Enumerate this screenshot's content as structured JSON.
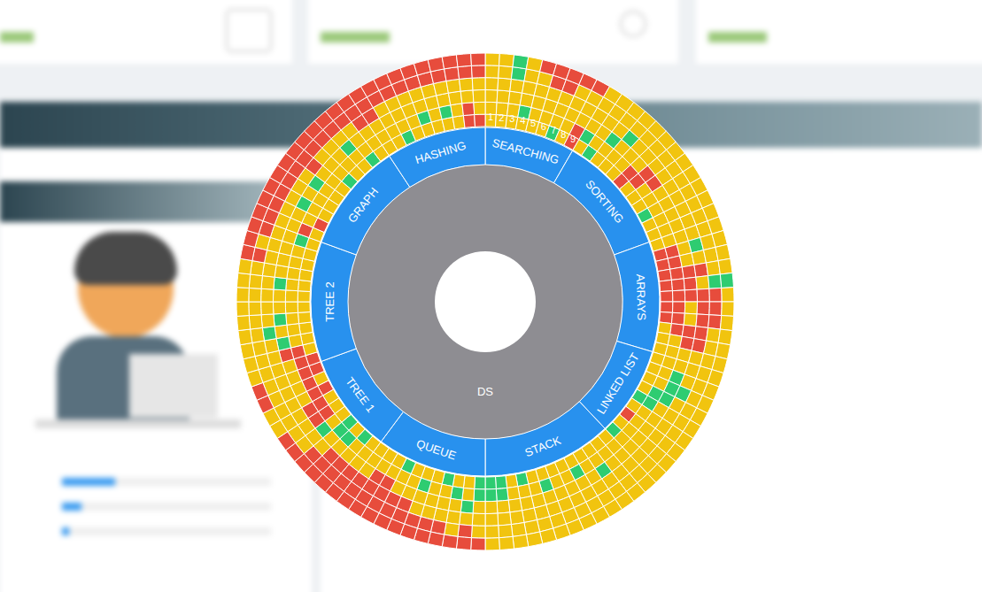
{
  "chart_data": {
    "type": "sunburst",
    "center": "DS",
    "color": "#2891ee",
    "children": [
      {
        "name": "SEARCHING",
        "labels": [
          1,
          2,
          3,
          4,
          5,
          6,
          7,
          8,
          9
        ],
        "colors": [
          [
            "#f1c40f",
            "#f1c40f",
            "#f1c40f",
            "#f1c40f",
            "#f1c40f",
            "#f1c40f"
          ],
          [
            "#f1c40f",
            "#f1c40f",
            "#f1c40f",
            "#f1c40f",
            "#f1c40f",
            "#f1c40f"
          ],
          [
            "#f1c40f",
            "#f1c40f",
            "#f1c40f",
            "#f1c40f",
            "#2ecc71",
            "#2ecc71"
          ],
          [
            "#f1c40f",
            "#2ecc71",
            "#f1c40f",
            "#f1c40f",
            "#f1c40f",
            "#f1c40f"
          ],
          [
            "#f1c40f",
            "#f1c40f",
            "#f1c40f",
            "#f1c40f",
            "#f1c40f",
            "#e74c3c"
          ],
          [
            "#f1c40f",
            "#f1c40f",
            "#f1c40f",
            "#f1c40f",
            "#e74c3c",
            "#e74c3c"
          ],
          [
            "#2ecc71",
            "#f1c40f",
            "#f1c40f",
            "#f1c40f",
            "#e74c3c",
            "#e74c3c"
          ],
          [
            "#f1c40f",
            "#f1c40f",
            "#f1c40f",
            "#f1c40f",
            "#f1c40f",
            "#e74c3c"
          ],
          [
            "#e74c3c",
            "#e74c3c",
            "#f1c40f",
            "#f1c40f",
            "#f1c40f",
            "#e74c3c"
          ]
        ]
      },
      {
        "name": "SORTING",
        "colors": [
          [
            "#f1c40f",
            "#2ecc71",
            "#f1c40f",
            "#f1c40f",
            "#f1c40f",
            "#f1c40f"
          ],
          [
            "#2ecc71",
            "#f1c40f",
            "#f1c40f",
            "#f1c40f",
            "#f1c40f",
            "#f1c40f"
          ],
          [
            "#f1c40f",
            "#f1c40f",
            "#2ecc71",
            "#f1c40f",
            "#f1c40f",
            "#f1c40f"
          ],
          [
            "#f1c40f",
            "#f1c40f",
            "#f1c40f",
            "#2ecc71",
            "#f1c40f",
            "#f1c40f"
          ],
          [
            "#f1c40f",
            "#f1c40f",
            "#f1c40f",
            "#f1c40f",
            "#f1c40f",
            "#f1c40f"
          ],
          [
            "#e74c3c",
            "#e74c3c",
            "#f1c40f",
            "#f1c40f",
            "#f1c40f",
            "#f1c40f"
          ],
          [
            "#f1c40f",
            "#e74c3c",
            "#e74c3c",
            "#f1c40f",
            "#f1c40f",
            "#f1c40f"
          ],
          [
            "#f1c40f",
            "#f1c40f",
            "#e74c3c",
            "#f1c40f",
            "#f1c40f",
            "#f1c40f"
          ],
          [
            "#f1c40f",
            "#f1c40f",
            "#f1c40f",
            "#f1c40f",
            "#f1c40f",
            "#f1c40f"
          ],
          [
            "#2ecc71",
            "#f1c40f",
            "#f1c40f",
            "#f1c40f",
            "#f1c40f",
            "#f1c40f"
          ],
          [
            "#f1c40f",
            "#f1c40f",
            "#f1c40f",
            "#f1c40f",
            "#f1c40f",
            "#f1c40f"
          ],
          [
            "#f1c40f",
            "#f1c40f",
            "#f1c40f",
            "#f1c40f",
            "#f1c40f",
            "#f1c40f"
          ]
        ]
      },
      {
        "name": "ARRAYS",
        "colors": [
          [
            "#f1c40f",
            "#f1c40f",
            "#f1c40f",
            "#f1c40f",
            "#f1c40f",
            "#f1c40f"
          ],
          [
            "#e74c3c",
            "#e74c3c",
            "#f1c40f",
            "#2ecc71",
            "#f1c40f",
            "#f1c40f"
          ],
          [
            "#e74c3c",
            "#e74c3c",
            "#f1c40f",
            "#f1c40f",
            "#f1c40f",
            "#f1c40f"
          ],
          [
            "#e74c3c",
            "#e74c3c",
            "#e74c3c",
            "#e74c3c",
            "#f1c40f",
            "#f1c40f"
          ],
          [
            "#e74c3c",
            "#e74c3c",
            "#e74c3c",
            "#f1c40f",
            "#2ecc71",
            "#2ecc71"
          ],
          [
            "#e74c3c",
            "#e74c3c",
            "#e74c3c",
            "#e74c3c",
            "#e74c3c",
            "#f1c40f"
          ],
          [
            "#e74c3c",
            "#e74c3c",
            "#f1c40f",
            "#e74c3c",
            "#e74c3c",
            "#f1c40f"
          ],
          [
            "#e74c3c",
            "#e74c3c",
            "#f1c40f",
            "#e74c3c",
            "#e74c3c",
            "#f1c40f"
          ],
          [
            "#f1c40f",
            "#e74c3c",
            "#e74c3c",
            "#e74c3c",
            "#f1c40f",
            "#f1c40f"
          ],
          [
            "#f1c40f",
            "#f1c40f",
            "#e74c3c",
            "#e74c3c",
            "#f1c40f",
            "#f1c40f"
          ],
          [
            "#f1c40f",
            "#f1c40f",
            "#f1c40f",
            "#f1c40f",
            "#f1c40f",
            "#f1c40f"
          ]
        ]
      },
      {
        "name": "LINKED LIST",
        "colors": [
          [
            "#f1c40f",
            "#f1c40f",
            "#f1c40f",
            "#f1c40f",
            "#f1c40f",
            "#f1c40f"
          ],
          [
            "#f1c40f",
            "#f1c40f",
            "#2ecc71",
            "#f1c40f",
            "#f1c40f",
            "#f1c40f"
          ],
          [
            "#f1c40f",
            "#f1c40f",
            "#2ecc71",
            "#2ecc71",
            "#f1c40f",
            "#f1c40f"
          ],
          [
            "#f1c40f",
            "#2ecc71",
            "#2ecc71",
            "#f1c40f",
            "#f1c40f",
            "#f1c40f"
          ],
          [
            "#2ecc71",
            "#2ecc71",
            "#f1c40f",
            "#f1c40f",
            "#f1c40f",
            "#f1c40f"
          ],
          [
            "#f1c40f",
            "#f1c40f",
            "#f1c40f",
            "#f1c40f",
            "#f1c40f",
            "#f1c40f"
          ],
          [
            "#e74c3c",
            "#f1c40f",
            "#f1c40f",
            "#f1c40f",
            "#f1c40f",
            "#f1c40f"
          ],
          [
            "#f1c40f",
            "#f1c40f",
            "#f1c40f",
            "#f1c40f",
            "#f1c40f",
            "#f1c40f"
          ],
          [
            "#2ecc71",
            "#f1c40f",
            "#f1c40f",
            "#f1c40f",
            "#f1c40f",
            "#f1c40f"
          ]
        ]
      },
      {
        "name": "STACK",
        "colors": [
          [
            "#f1c40f",
            "#f1c40f",
            "#f1c40f",
            "#f1c40f",
            "#f1c40f",
            "#f1c40f"
          ],
          [
            "#f1c40f",
            "#f1c40f",
            "#f1c40f",
            "#f1c40f",
            "#f1c40f",
            "#f1c40f"
          ],
          [
            "#f1c40f",
            "#f1c40f",
            "#2ecc71",
            "#f1c40f",
            "#f1c40f",
            "#f1c40f"
          ],
          [
            "#f1c40f",
            "#f1c40f",
            "#f1c40f",
            "#f1c40f",
            "#f1c40f",
            "#f1c40f"
          ],
          [
            "#f1c40f",
            "#2ecc71",
            "#f1c40f",
            "#f1c40f",
            "#f1c40f",
            "#f1c40f"
          ],
          [
            "#f1c40f",
            "#f1c40f",
            "#f1c40f",
            "#f1c40f",
            "#f1c40f",
            "#f1c40f"
          ],
          [
            "#f1c40f",
            "#f1c40f",
            "#f1c40f",
            "#f1c40f",
            "#f1c40f",
            "#f1c40f"
          ],
          [
            "#f1c40f",
            "#2ecc71",
            "#f1c40f",
            "#f1c40f",
            "#f1c40f",
            "#f1c40f"
          ],
          [
            "#f1c40f",
            "#f1c40f",
            "#f1c40f",
            "#f1c40f",
            "#f1c40f",
            "#f1c40f"
          ],
          [
            "#2ecc71",
            "#f1c40f",
            "#f1c40f",
            "#f1c40f",
            "#f1c40f",
            "#f1c40f"
          ],
          [
            "#f1c40f",
            "#f1c40f",
            "#f1c40f",
            "#f1c40f",
            "#f1c40f",
            "#f1c40f"
          ],
          [
            "#2ecc71",
            "#2ecc71",
            "#f1c40f",
            "#f1c40f",
            "#f1c40f",
            "#f1c40f"
          ],
          [
            "#2ecc71",
            "#2ecc71",
            "#f1c40f",
            "#f1c40f",
            "#f1c40f",
            "#f1c40f"
          ]
        ]
      },
      {
        "name": "QUEUE",
        "colors": [
          [
            "#2ecc71",
            "#2ecc71",
            "#f1c40f",
            "#f1c40f",
            "#f1c40f",
            "#e74c3c"
          ],
          [
            "#f1c40f",
            "#f1c40f",
            "#2ecc71",
            "#f1c40f",
            "#e74c3c",
            "#e74c3c"
          ],
          [
            "#f1c40f",
            "#2ecc71",
            "#f1c40f",
            "#f1c40f",
            "#f1c40f",
            "#e74c3c"
          ],
          [
            "#2ecc71",
            "#f1c40f",
            "#f1c40f",
            "#f1c40f",
            "#e74c3c",
            "#e74c3c"
          ],
          [
            "#f1c40f",
            "#f1c40f",
            "#f1c40f",
            "#f1c40f",
            "#e74c3c",
            "#e74c3c"
          ],
          [
            "#f1c40f",
            "#2ecc71",
            "#f1c40f",
            "#f1c40f",
            "#e74c3c",
            "#e74c3c"
          ],
          [
            "#f1c40f",
            "#f1c40f",
            "#f1c40f",
            "#e74c3c",
            "#e74c3c",
            "#e74c3c"
          ],
          [
            "#2ecc71",
            "#f1c40f",
            "#f1c40f",
            "#e74c3c",
            "#e74c3c",
            "#e74c3c"
          ],
          [
            "#f1c40f",
            "#f1c40f",
            "#e74c3c",
            "#e74c3c",
            "#e74c3c",
            "#e74c3c"
          ],
          [
            "#f1c40f",
            "#f1c40f",
            "#e74c3c",
            "#e74c3c",
            "#e74c3c",
            "#e74c3c"
          ],
          [
            "#f1c40f",
            "#f1c40f",
            "#f1c40f",
            "#e74c3c",
            "#e74c3c",
            "#e74c3c"
          ]
        ]
      },
      {
        "name": "TREE 1",
        "colors": [
          [
            "#f1c40f",
            "#f1c40f",
            "#f1c40f",
            "#e74c3c",
            "#e74c3c",
            "#e74c3c"
          ],
          [
            "#2ecc71",
            "#f1c40f",
            "#f1c40f",
            "#e74c3c",
            "#e74c3c",
            "#e74c3c"
          ],
          [
            "#f1c40f",
            "#2ecc71",
            "#f1c40f",
            "#e74c3c",
            "#e74c3c",
            "#e74c3c"
          ],
          [
            "#2ecc71",
            "#2ecc71",
            "#f1c40f",
            "#f1c40f",
            "#e74c3c",
            "#e74c3c"
          ],
          [
            "#f1c40f",
            "#f1c40f",
            "#2ecc71",
            "#f1c40f",
            "#f1c40f",
            "#e74c3c"
          ],
          [
            "#f1c40f",
            "#e74c3c",
            "#e74c3c",
            "#f1c40f",
            "#f1c40f",
            "#e74c3c"
          ],
          [
            "#f1c40f",
            "#e74c3c",
            "#e74c3c",
            "#f1c40f",
            "#f1c40f",
            "#f1c40f"
          ],
          [
            "#e74c3c",
            "#e74c3c",
            "#f1c40f",
            "#f1c40f",
            "#f1c40f",
            "#f1c40f"
          ],
          [
            "#f1c40f",
            "#e74c3c",
            "#f1c40f",
            "#f1c40f",
            "#f1c40f",
            "#e74c3c"
          ],
          [
            "#e74c3c",
            "#e74c3c",
            "#f1c40f",
            "#f1c40f",
            "#f1c40f",
            "#e74c3c"
          ]
        ]
      },
      {
        "name": "TREE 2",
        "colors": [
          [
            "#e74c3c",
            "#e74c3c",
            "#f1c40f",
            "#f1c40f",
            "#f1c40f",
            "#f1c40f"
          ],
          [
            "#f1c40f",
            "#e74c3c",
            "#e74c3c",
            "#f1c40f",
            "#f1c40f",
            "#f1c40f"
          ],
          [
            "#f1c40f",
            "#f1c40f",
            "#2ecc71",
            "#f1c40f",
            "#f1c40f",
            "#f1c40f"
          ],
          [
            "#f1c40f",
            "#f1c40f",
            "#f1c40f",
            "#2ecc71",
            "#f1c40f",
            "#f1c40f"
          ],
          [
            "#f1c40f",
            "#f1c40f",
            "#2ecc71",
            "#f1c40f",
            "#f1c40f",
            "#f1c40f"
          ],
          [
            "#f1c40f",
            "#f1c40f",
            "#f1c40f",
            "#f1c40f",
            "#f1c40f",
            "#f1c40f"
          ],
          [
            "#f1c40f",
            "#f1c40f",
            "#f1c40f",
            "#f1c40f",
            "#f1c40f",
            "#f1c40f"
          ],
          [
            "#f1c40f",
            "#f1c40f",
            "#2ecc71",
            "#f1c40f",
            "#f1c40f",
            "#f1c40f"
          ],
          [
            "#f1c40f",
            "#f1c40f",
            "#f1c40f",
            "#f1c40f",
            "#f1c40f",
            "#f1c40f"
          ],
          [
            "#f1c40f",
            "#f1c40f",
            "#f1c40f",
            "#f1c40f",
            "#e74c3c",
            "#e74c3c"
          ],
          [
            "#f1c40f",
            "#f1c40f",
            "#f1c40f",
            "#f1c40f",
            "#f1c40f",
            "#e74c3c"
          ],
          [
            "#f1c40f",
            "#2ecc71",
            "#f1c40f",
            "#f1c40f",
            "#e74c3c",
            "#e74c3c"
          ]
        ]
      },
      {
        "name": "GRAPH",
        "colors": [
          [
            "#f1c40f",
            "#e74c3c",
            "#f1c40f",
            "#f1c40f",
            "#e74c3c",
            "#e74c3c"
          ],
          [
            "#e74c3c",
            "#f1c40f",
            "#f1c40f",
            "#f1c40f",
            "#e74c3c",
            "#e74c3c"
          ],
          [
            "#f1c40f",
            "#f1c40f",
            "#2ecc71",
            "#f1c40f",
            "#e74c3c",
            "#e74c3c"
          ],
          [
            "#f1c40f",
            "#f1c40f",
            "#f1c40f",
            "#f1c40f",
            "#e74c3c",
            "#e74c3c"
          ],
          [
            "#f1c40f",
            "#f1c40f",
            "#2ecc71",
            "#f1c40f",
            "#e74c3c",
            "#e74c3c"
          ],
          [
            "#f1c40f",
            "#f1c40f",
            "#f1c40f",
            "#e74c3c",
            "#e74c3c",
            "#e74c3c"
          ],
          [
            "#2ecc71",
            "#f1c40f",
            "#f1c40f",
            "#f1c40f",
            "#e74c3c",
            "#e74c3c"
          ],
          [
            "#f1c40f",
            "#f1c40f",
            "#f1c40f",
            "#f1c40f",
            "#e74c3c",
            "#e74c3c"
          ],
          [
            "#f1c40f",
            "#f1c40f",
            "#2ecc71",
            "#f1c40f",
            "#e74c3c",
            "#e74c3c"
          ],
          [
            "#2ecc71",
            "#f1c40f",
            "#f1c40f",
            "#f1c40f",
            "#e74c3c",
            "#e74c3c"
          ],
          [
            "#f1c40f",
            "#f1c40f",
            "#f1c40f",
            "#e74c3c",
            "#e74c3c",
            "#e74c3c"
          ]
        ]
      },
      {
        "name": "HASHING",
        "colors": [
          [
            "#f1c40f",
            "#f1c40f",
            "#f1c40f",
            "#e74c3c",
            "#e74c3c",
            "#e74c3c"
          ],
          [
            "#f1c40f",
            "#f1c40f",
            "#f1c40f",
            "#f1c40f",
            "#e74c3c",
            "#e74c3c"
          ],
          [
            "#2ecc71",
            "#f1c40f",
            "#f1c40f",
            "#f1c40f",
            "#e74c3c",
            "#e74c3c"
          ],
          [
            "#f1c40f",
            "#f1c40f",
            "#f1c40f",
            "#f1c40f",
            "#e74c3c",
            "#e74c3c"
          ],
          [
            "#f1c40f",
            "#2ecc71",
            "#f1c40f",
            "#f1c40f",
            "#e74c3c",
            "#e74c3c"
          ],
          [
            "#f1c40f",
            "#f1c40f",
            "#f1c40f",
            "#f1c40f",
            "#e74c3c",
            "#e74c3c"
          ],
          [
            "#f1c40f",
            "#2ecc71",
            "#f1c40f",
            "#f1c40f",
            "#e74c3c",
            "#e74c3c"
          ],
          [
            "#f1c40f",
            "#f1c40f",
            "#f1c40f",
            "#f1c40f",
            "#e74c3c",
            "#e74c3c"
          ],
          [
            "#e74c3c",
            "#e74c3c",
            "#f1c40f",
            "#f1c40f",
            "#e74c3c",
            "#e74c3c"
          ],
          [
            "#e74c3c",
            "#f1c40f",
            "#f1c40f",
            "#f1c40f",
            "#e74c3c",
            "#e74c3c"
          ]
        ]
      }
    ]
  }
}
